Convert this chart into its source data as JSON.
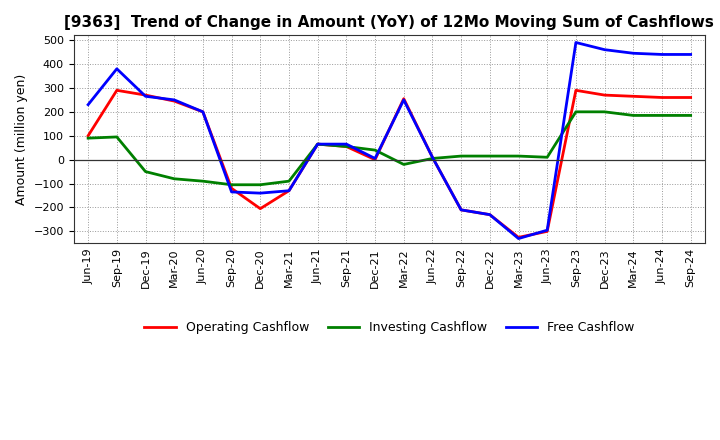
{
  "title": "[9363]  Trend of Change in Amount (YoY) of 12Mo Moving Sum of Cashflows",
  "ylabel": "Amount (million yen)",
  "x_labels": [
    "Jun-19",
    "Sep-19",
    "Dec-19",
    "Mar-20",
    "Jun-20",
    "Sep-20",
    "Dec-20",
    "Mar-21",
    "Jun-21",
    "Sep-21",
    "Dec-21",
    "Mar-22",
    "Jun-22",
    "Sep-22",
    "Dec-22",
    "Mar-23",
    "Jun-23",
    "Sep-23",
    "Dec-23",
    "Mar-24",
    "Jun-24",
    "Sep-24"
  ],
  "operating": [
    100,
    290,
    270,
    245,
    200,
    -120,
    -205,
    -130,
    65,
    55,
    0,
    255,
    10,
    -210,
    -230,
    -325,
    -300,
    290,
    270,
    265,
    260,
    260
  ],
  "investing": [
    90,
    95,
    -50,
    -80,
    -90,
    -105,
    -105,
    -90,
    65,
    55,
    40,
    -20,
    5,
    15,
    15,
    15,
    10,
    200,
    200,
    185,
    185,
    185
  ],
  "free": [
    230,
    380,
    265,
    250,
    200,
    -135,
    -140,
    -130,
    65,
    65,
    5,
    250,
    10,
    -210,
    -230,
    -330,
    -295,
    490,
    460,
    445,
    440,
    440
  ],
  "ylim": [
    -350,
    520
  ],
  "yticks": [
    -300,
    -200,
    -100,
    0,
    100,
    200,
    300,
    400,
    500
  ],
  "operating_color": "#ff0000",
  "investing_color": "#008000",
  "free_color": "#0000ff",
  "bg_color": "#ffffff",
  "grid_color": "#999999",
  "linewidth": 2.0,
  "title_fontsize": 11,
  "axis_fontsize": 9,
  "tick_fontsize": 8
}
